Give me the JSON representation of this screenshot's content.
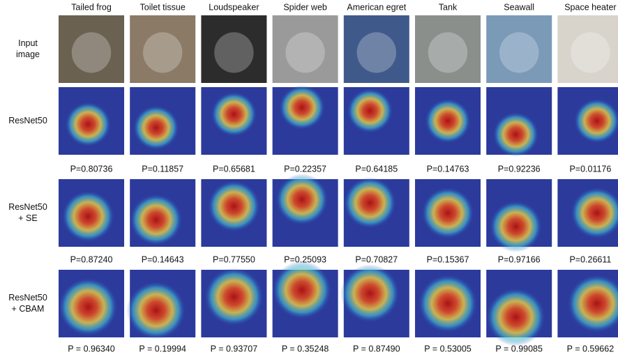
{
  "columns": [
    "Tailed frog",
    "Toilet tissue",
    "Loudspeaker",
    "Spider web",
    "American egret",
    "Tank",
    "Seawall",
    "Space heater"
  ],
  "rows": [
    {
      "label": [
        "Input",
        "image"
      ]
    },
    {
      "label": [
        "ResNet50"
      ],
      "probabilities": [
        "P=0.80736",
        "P=0.11857",
        "P=0.65681",
        "P=0.22357",
        "P=0.64185",
        "P=0.14763",
        "P=0.92236",
        "P=0.01176"
      ]
    },
    {
      "label": [
        "ResNet50",
        "+ SE"
      ],
      "probabilities": [
        "P=0.87240",
        "P=0.14643",
        "P=0.77550",
        "P=0.25093",
        "P=0.70827",
        "P=0.15367",
        "P=0.97166",
        "P=0.26611"
      ]
    },
    {
      "label": [
        "ResNet50",
        "+ CBAM"
      ],
      "probabilities": [
        "P = 0.96340",
        "P = 0.19994",
        "P = 0.93707",
        "P = 0.35248",
        "P = 0.87490",
        "P = 0.53005",
        "P = 0.99085",
        "P = 0.59662"
      ]
    }
  ]
}
